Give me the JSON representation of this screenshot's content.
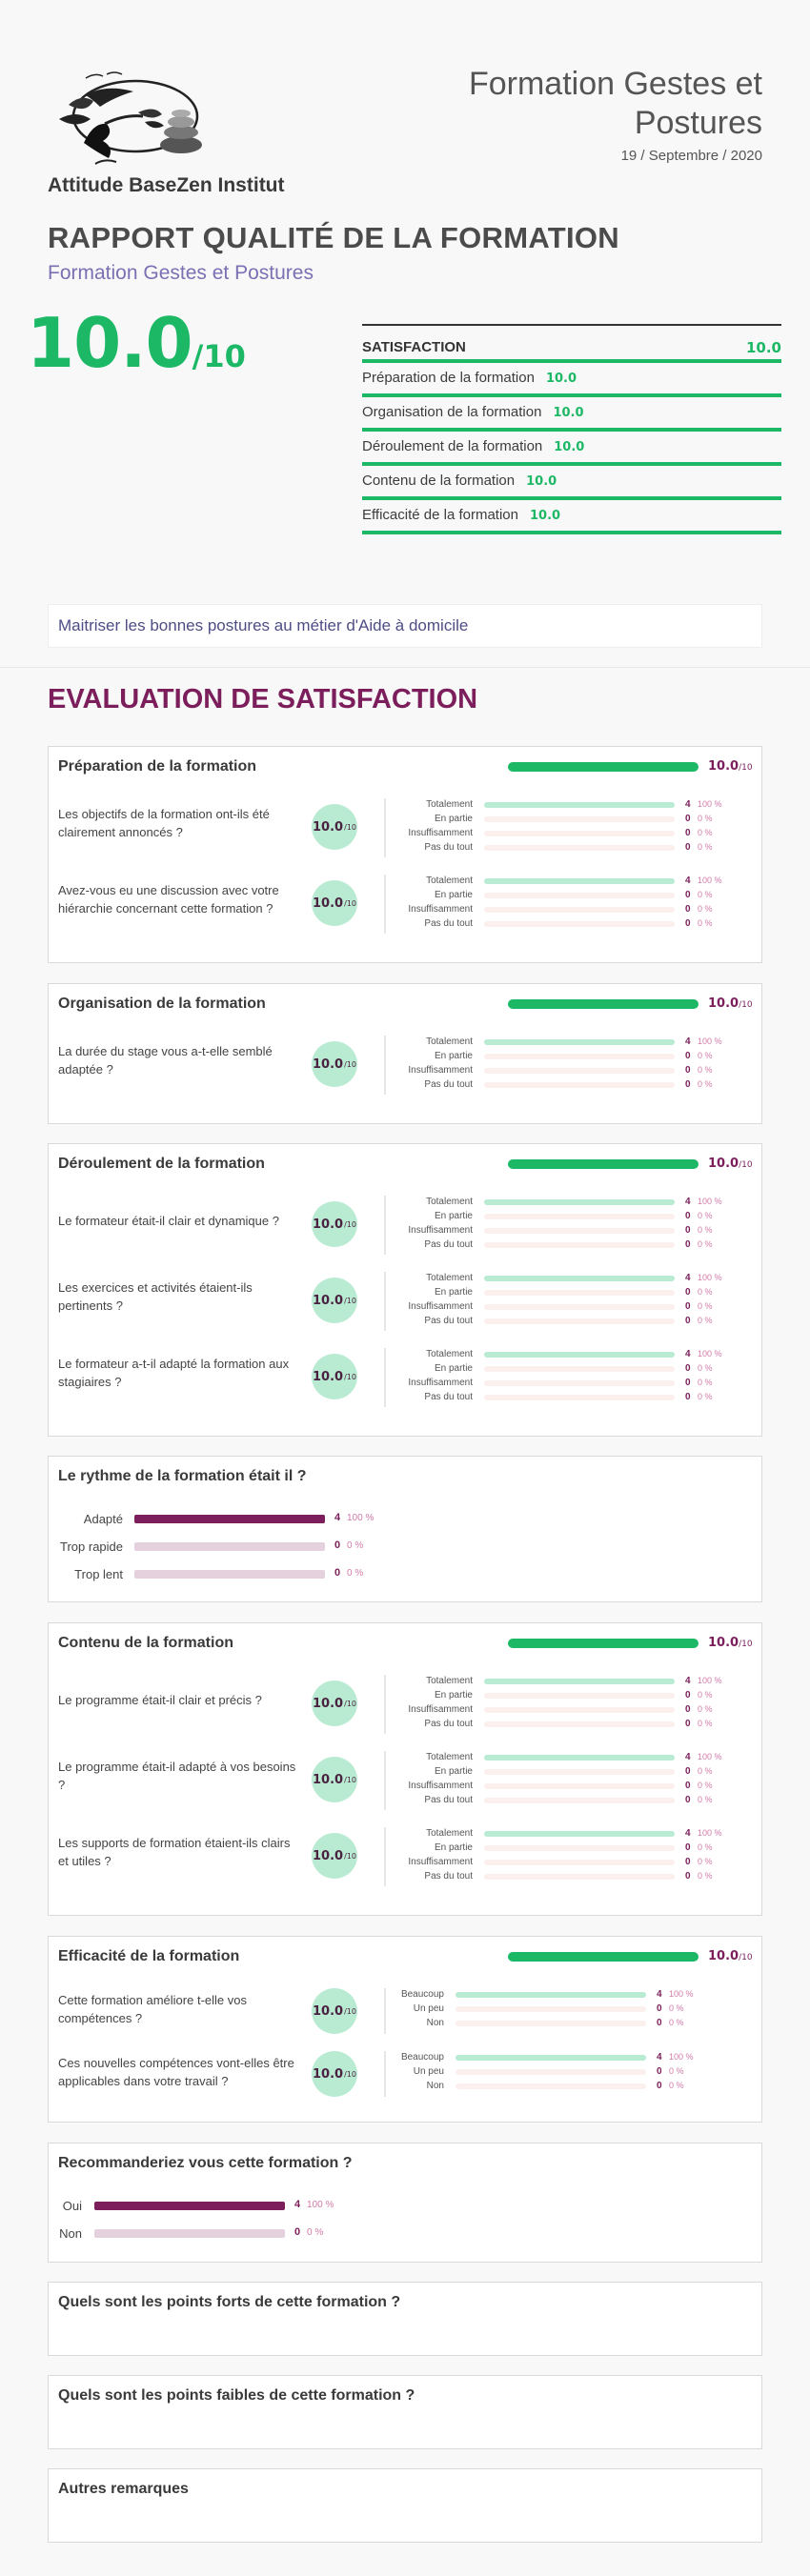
{
  "header": {
    "institute": "Attitude BaseZen Institut",
    "training_title": "Formation Gestes et Postures",
    "date": "19 / Septembre / 2020",
    "report_title": "RAPPORT QUALITÉ DE LA FORMATION",
    "report_subtitle": "Formation Gestes et Postures",
    "score": "10.0",
    "score_denominator": "/10"
  },
  "satisfaction": {
    "title": "SATISFACTION",
    "value": "10.0",
    "items": [
      {
        "label": "Préparation de la formation",
        "value": "10.0"
      },
      {
        "label": "Organisation de la formation",
        "value": "10.0"
      },
      {
        "label": "Déroulement de la formation",
        "value": "10.0"
      },
      {
        "label": "Contenu de la formation",
        "value": "10.0"
      },
      {
        "label": "Efficacité de la formation",
        "value": "10.0"
      }
    ]
  },
  "goal": "Maitriser les bonnes postures au métier d'Aide à domicile",
  "evaluation_title": "EVALUATION DE SATISFACTION",
  "score_suffix": "/10",
  "option_labels": {
    "totalement": "Totalement",
    "en_partie": "En partie",
    "insuffisamment": "Insuffisamment",
    "pas_du_tout": "Pas du tout",
    "beaucoup": "Beaucoup",
    "un_peu": "Un peu",
    "non": "Non"
  },
  "stats": {
    "full_count": "4",
    "full_pct": "100 %",
    "zero_count": "0",
    "zero_pct": "0 %"
  },
  "sections": {
    "preparation": {
      "title": "Préparation de la formation",
      "score": "10.0",
      "questions": [
        {
          "text": "Les objectifs de la formation ont-ils été clairement annoncés ?",
          "score": "10.0"
        },
        {
          "text": "Avez-vous eu une discussion avec votre hiérarchie concernant cette formation ?",
          "score": "10.0"
        }
      ]
    },
    "organisation": {
      "title": "Organisation de la formation",
      "score": "10.0",
      "questions": [
        {
          "text": "La durée du stage vous a-t-elle semblé adaptée ?",
          "score": "10.0"
        }
      ]
    },
    "deroulement": {
      "title": "Déroulement de la formation",
      "score": "10.0",
      "questions": [
        {
          "text": "Le formateur était-il clair et dynamique ?",
          "score": "10.0"
        },
        {
          "text": "Les exercices et activités étaient-ils pertinents ?",
          "score": "10.0"
        },
        {
          "text": "Le formateur a-t-il adapté la formation aux stagiaires ?",
          "score": "10.0"
        }
      ]
    },
    "rythme": {
      "title": "Le rythme de la formation était il ?",
      "options": [
        {
          "label": "Adapté",
          "count": "4",
          "pct": "100 %",
          "fraction": 1
        },
        {
          "label": "Trop rapide",
          "count": "0",
          "pct": "0 %",
          "fraction": 0
        },
        {
          "label": "Trop lent",
          "count": "0",
          "pct": "0 %",
          "fraction": 0
        }
      ]
    },
    "contenu": {
      "title": "Contenu de la formation",
      "score": "10.0",
      "questions": [
        {
          "text": "Le programme était-il clair et précis ?",
          "score": "10.0"
        },
        {
          "text": "Le programme était-il adapté à vos besoins ?",
          "score": "10.0"
        },
        {
          "text": "Les supports de formation étaient-ils clairs et utiles ?",
          "score": "10.0"
        }
      ]
    },
    "efficacite": {
      "title": "Efficacité de la formation",
      "score": "10.0",
      "questions": [
        {
          "text": "Cette formation améliore t-elle vos compétences ?",
          "score": "10.0"
        },
        {
          "text": "Ces nouvelles compétences vont-elles être applicables dans votre travail ?",
          "score": "10.0"
        }
      ]
    },
    "recommandation": {
      "title": "Recommanderiez vous cette formation ?",
      "options": [
        {
          "label": "Oui",
          "count": "4",
          "pct": "100 %",
          "fraction": 1
        },
        {
          "label": "Non",
          "count": "0",
          "pct": "0 %",
          "fraction": 0
        }
      ]
    },
    "points_forts": {
      "title": "Quels sont les points forts de cette formation ?"
    },
    "points_faibles": {
      "title": "Quels sont les points faibles de cette formation ?"
    },
    "remarques": {
      "title": "Autres remarques"
    }
  }
}
